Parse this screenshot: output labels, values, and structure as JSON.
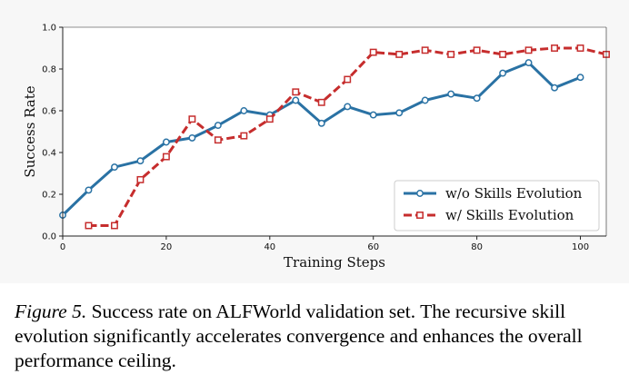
{
  "chart_data": {
    "type": "line",
    "title": "",
    "xlabel": "Training Steps",
    "ylabel": "Success Rate",
    "xlim": [
      0,
      105
    ],
    "ylim": [
      0,
      1.0
    ],
    "xticks": [
      "0",
      "20",
      "40",
      "60",
      "80",
      "100"
    ],
    "yticks": [
      "0.0",
      "0.2",
      "0.4",
      "0.6",
      "0.8",
      "1.0"
    ],
    "grid": false,
    "legend_position": "lower-right",
    "series": [
      {
        "name": "w/o Skills Evolution",
        "color": "#2a72a4",
        "line_style": "solid",
        "marker": "circle",
        "x": [
          0,
          5,
          10,
          15,
          20,
          25,
          30,
          35,
          40,
          45,
          50,
          55,
          60,
          65,
          70,
          75,
          80,
          85,
          90,
          95,
          100
        ],
        "y": [
          0.1,
          0.22,
          0.33,
          0.36,
          0.45,
          0.47,
          0.53,
          0.6,
          0.58,
          0.65,
          0.54,
          0.62,
          0.58,
          0.59,
          0.65,
          0.68,
          0.66,
          0.78,
          0.83,
          0.71,
          0.76
        ]
      },
      {
        "name": "w/ Skills Evolution",
        "color": "#c62d2d",
        "line_style": "dashed",
        "marker": "square",
        "x": [
          5,
          10,
          15,
          20,
          25,
          30,
          35,
          40,
          45,
          50,
          55,
          60,
          65,
          70,
          75,
          80,
          85,
          90,
          95,
          100,
          105
        ],
        "y": [
          0.05,
          0.05,
          0.27,
          0.38,
          0.56,
          0.46,
          0.48,
          0.56,
          0.69,
          0.64,
          0.75,
          0.88,
          0.87,
          0.89,
          0.87,
          0.89,
          0.87,
          0.89,
          0.9,
          0.9,
          0.87
        ]
      }
    ]
  },
  "caption": {
    "lead": "Figure 5.",
    "text": " Success rate on ALFWorld validation set. The recursive skill evolution significantly accelerates convergence and enhances the overall performance ceiling."
  }
}
